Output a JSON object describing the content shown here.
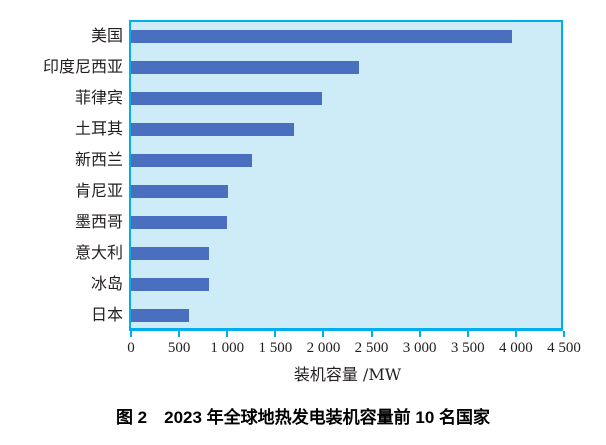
{
  "caption": "图 2　2023 年全球地热发电装机容量前 10 名国家",
  "chart_data": {
    "type": "bar",
    "orientation": "horizontal",
    "title": "",
    "categories": [
      "美国",
      "印度尼西亚",
      "菲律宾",
      "土耳其",
      "新西兰",
      "肯尼亚",
      "墨西哥",
      "意大利",
      "冰岛",
      "日本"
    ],
    "values": [
      3960,
      2370,
      1990,
      1690,
      1260,
      1010,
      1000,
      815,
      815,
      605
    ],
    "xlabel": "装机容量 /MW",
    "ylabel": "",
    "xlim": [
      0,
      4500
    ],
    "x_tick_step": 500,
    "x_tick_labels": [
      "0",
      "500",
      "1 000",
      "1 500",
      "2 000",
      "2 500",
      "3 000",
      "3 500",
      "4 000",
      "4 500"
    ],
    "grid": false,
    "legend": false,
    "colors": {
      "bar": "#4a6fbe",
      "plot_background": "#cdecf7",
      "plot_border": "#00aeef",
      "text": "#231f20"
    }
  }
}
